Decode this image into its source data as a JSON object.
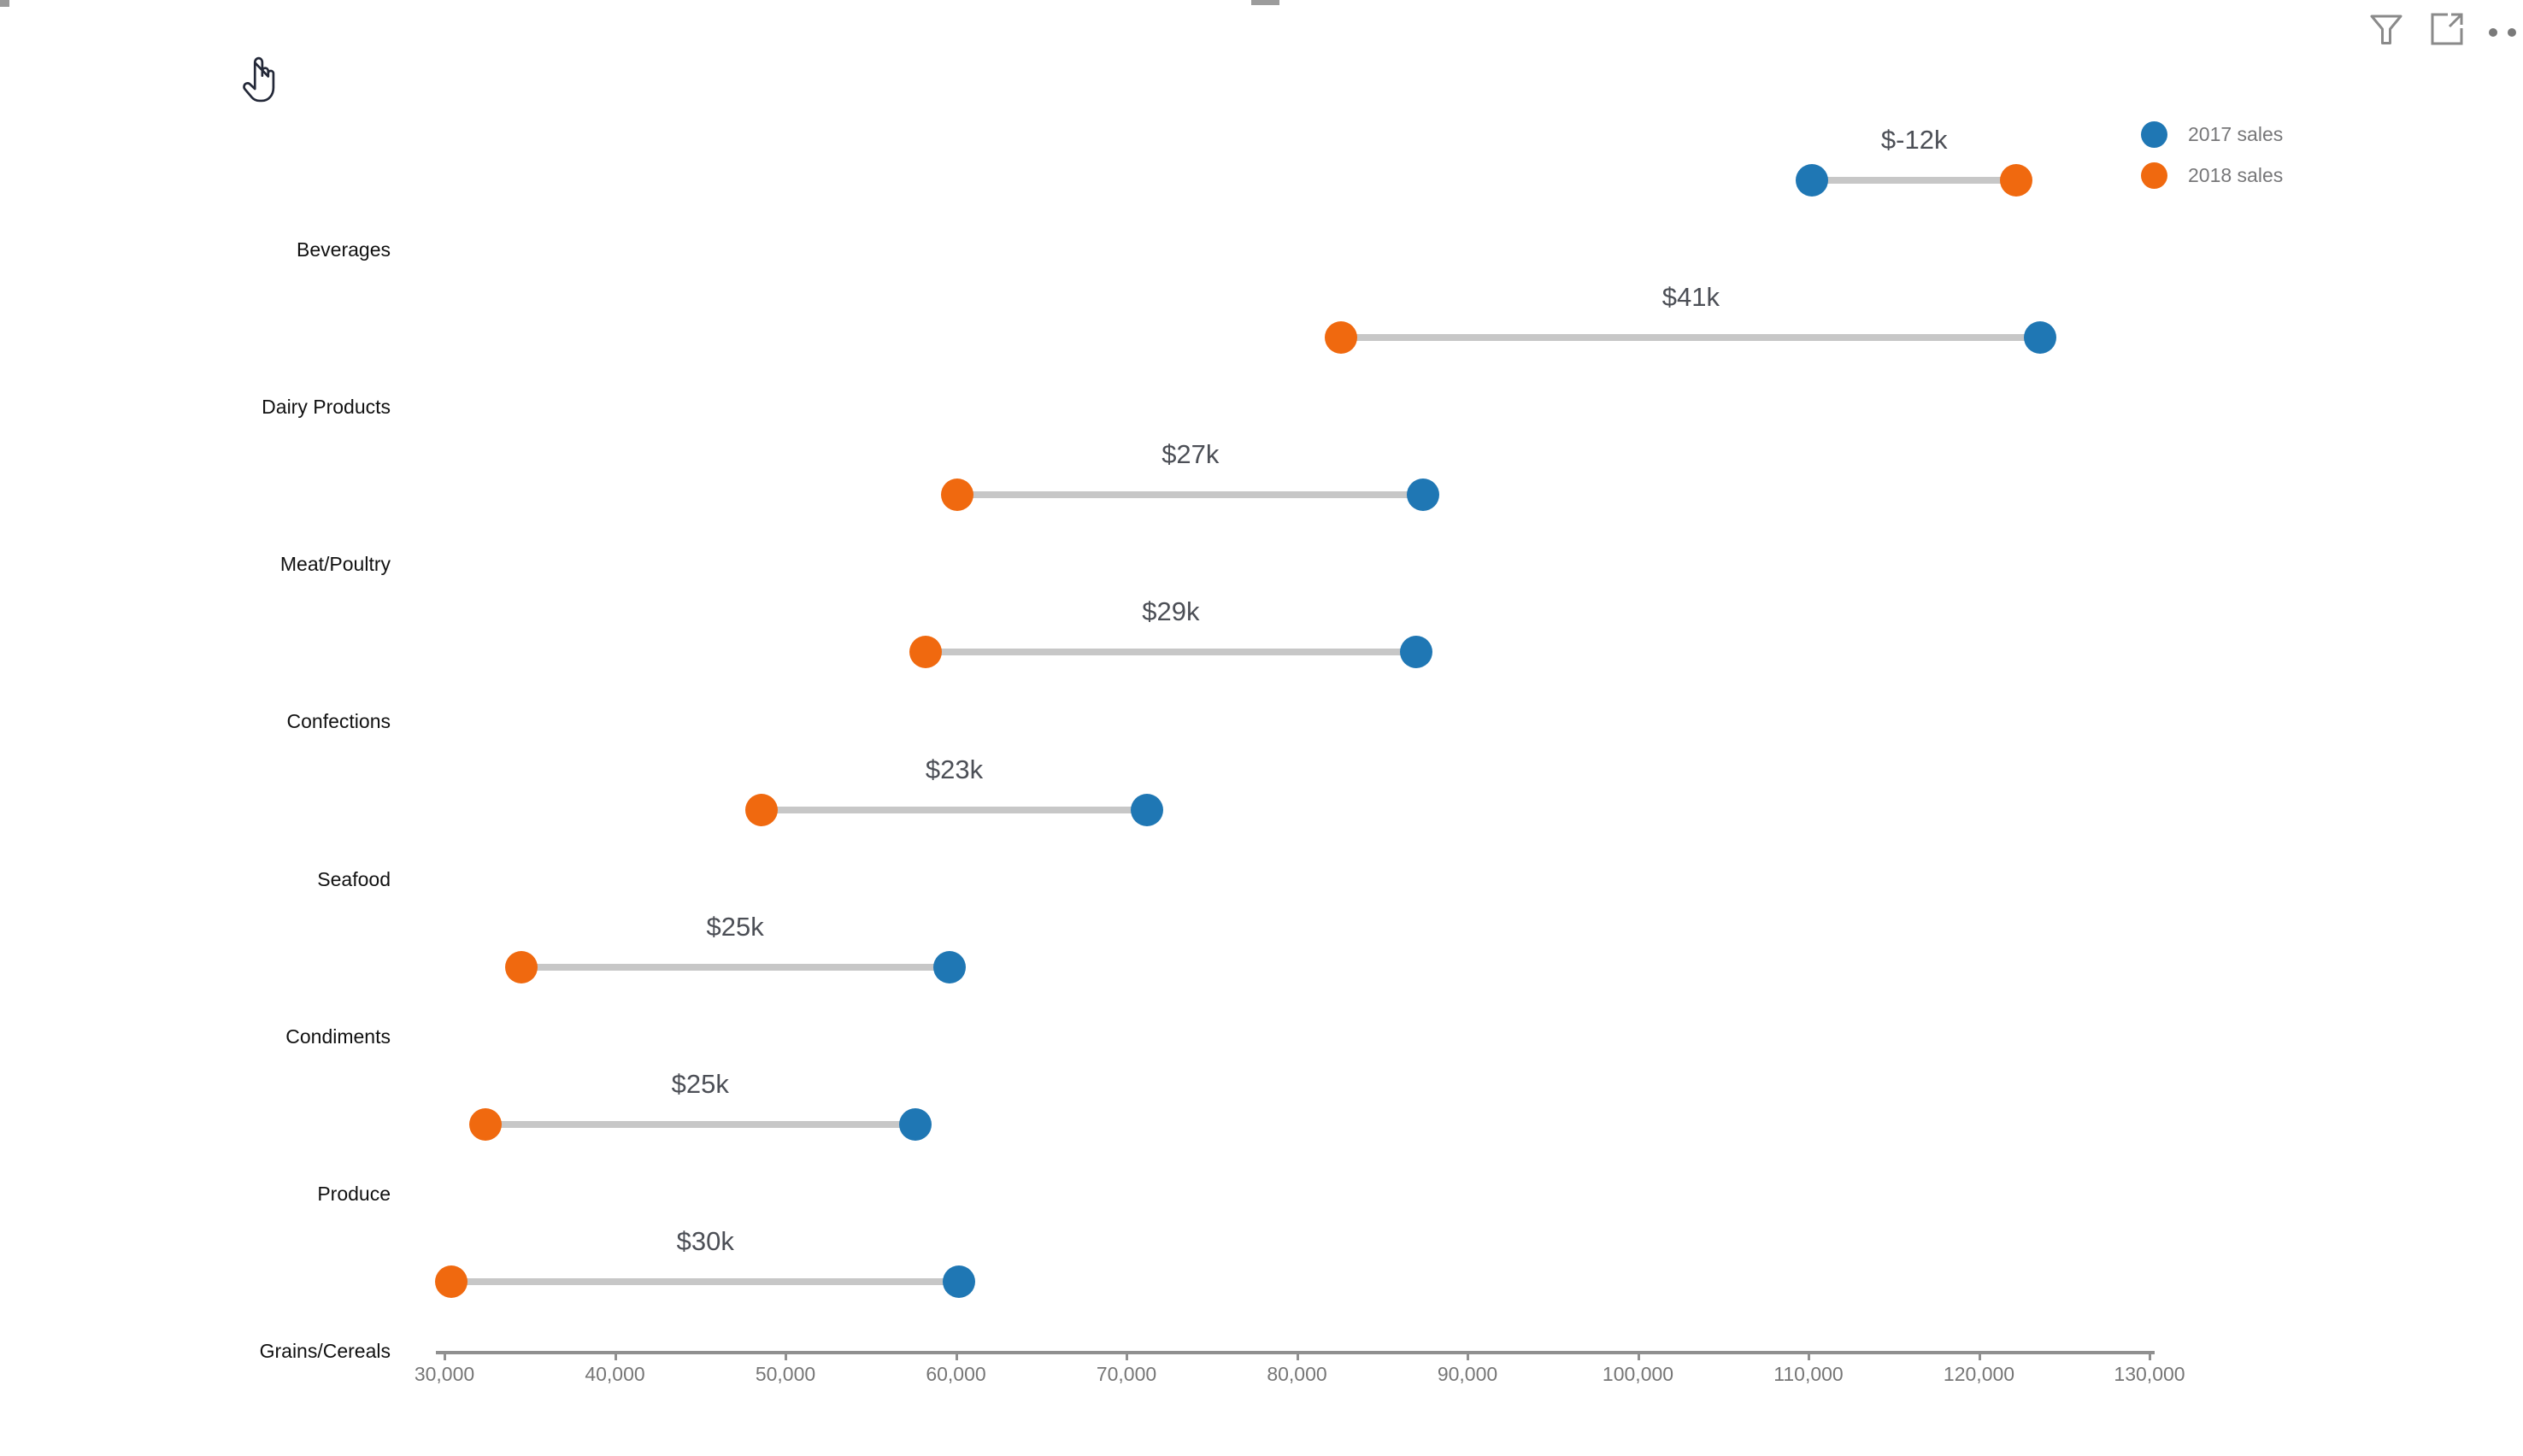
{
  "page": {
    "background": "#ffffff"
  },
  "visual_header": {
    "icons": [
      {
        "name": "filter-icon"
      },
      {
        "name": "focus-mode-icon"
      },
      {
        "name": "more-options-icon"
      }
    ]
  },
  "legend": {
    "position": "top-right",
    "items": [
      {
        "label": "2017 sales",
        "color": "#1f77b4"
      },
      {
        "label": "2018 sales",
        "color": "#f0690f"
      }
    ]
  },
  "chart_data": {
    "type": "dumbbell",
    "title": "",
    "xlabel": "",
    "ylabel": "",
    "grid": false,
    "legend_position": "top-right",
    "categories": [
      "Beverages",
      "Dairy Products",
      "Meat/Poultry",
      "Confections",
      "Seafood",
      "Condiments",
      "Produce",
      "Grains/Cereals"
    ],
    "series": [
      {
        "name": "2017 sales",
        "color": "#1f77b4",
        "values": [
          110200,
          123600,
          87400,
          87000,
          71200,
          59600,
          57600,
          60200
        ]
      },
      {
        "name": "2018 sales",
        "color": "#f0690f",
        "values": [
          122200,
          82600,
          60100,
          58200,
          48600,
          34500,
          32400,
          30400
        ]
      }
    ],
    "difference_labels": [
      "$-12k",
      "$41k",
      "$27k",
      "$29k",
      "$23k",
      "$25k",
      "$25k",
      "$30k"
    ],
    "xlim": [
      30000,
      130000
    ],
    "x_tick_values": [
      30000,
      40000,
      50000,
      60000,
      70000,
      80000,
      90000,
      100000,
      110000,
      120000,
      130000
    ],
    "x_ticks": [
      "30,000",
      "40,000",
      "50,000",
      "60,000",
      "70,000",
      "80,000",
      "90,000",
      "100,000",
      "110,000",
      "120,000",
      "130,000"
    ],
    "colors": {
      "connector_line": "#c7c7c7",
      "axis": "#909090",
      "tick_label": "#767676",
      "difference_label": "#4c4f56",
      "category_label": "#111111"
    }
  }
}
